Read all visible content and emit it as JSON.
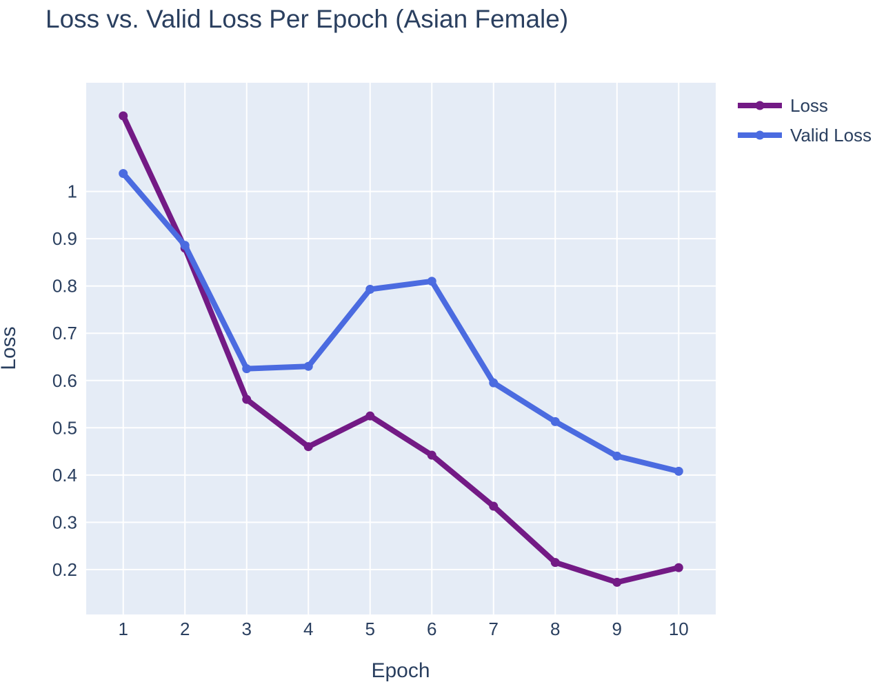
{
  "chart_data": {
    "type": "line",
    "title": "Loss vs. Valid Loss Per Epoch (Asian Female)",
    "xlabel": "Epoch",
    "ylabel": "Loss",
    "x": [
      1,
      2,
      3,
      4,
      5,
      6,
      7,
      8,
      9,
      10
    ],
    "x_ticks": [
      "1",
      "2",
      "3",
      "4",
      "5",
      "6",
      "7",
      "8",
      "9",
      "10"
    ],
    "y_ticks": [
      "0.2",
      "0.3",
      "0.4",
      "0.5",
      "0.6",
      "0.7",
      "0.8",
      "0.9",
      "1"
    ],
    "y_tick_values": [
      0.2,
      0.3,
      0.4,
      0.5,
      0.6,
      0.7,
      0.8,
      0.9,
      1.0
    ],
    "xlim": [
      0.4,
      10.6
    ],
    "ylim": [
      0.105,
      1.23
    ],
    "grid": true,
    "legend_position": "top-right",
    "series": [
      {
        "name": "Loss",
        "color": "#731a85",
        "values": [
          1.16,
          0.88,
          0.56,
          0.46,
          0.525,
          0.442,
          0.334,
          0.215,
          0.173,
          0.204
        ]
      },
      {
        "name": "Valid Loss",
        "color": "#4b6be0",
        "values": [
          1.038,
          0.886,
          0.625,
          0.63,
          0.793,
          0.81,
          0.595,
          0.513,
          0.44,
          0.408
        ]
      }
    ],
    "plot_background": "#e5ecf6",
    "grid_color": "#ffffff"
  }
}
